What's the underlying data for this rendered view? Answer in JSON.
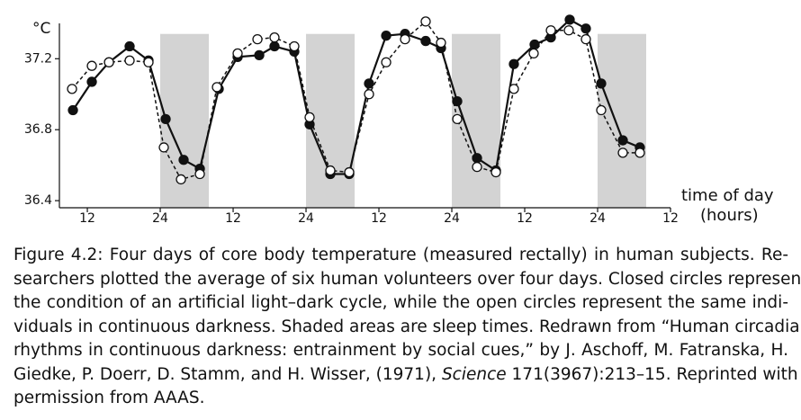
{
  "chart_data": {
    "type": "line",
    "ylabel": "°C",
    "xlabel": [
      "time of day",
      "(hours)"
    ],
    "xlim": [
      7.4,
      108
    ],
    "ylim": [
      36.36,
      37.45
    ],
    "xticks": [
      {
        "value": 12,
        "label": "12"
      },
      {
        "value": 24,
        "label": "24"
      },
      {
        "value": 36,
        "label": "12"
      },
      {
        "value": 48,
        "label": "24"
      },
      {
        "value": 60,
        "label": "12"
      },
      {
        "value": 72,
        "label": "24"
      },
      {
        "value": 84,
        "label": "12"
      },
      {
        "value": 96,
        "label": "24"
      },
      {
        "value": 108,
        "label": "12"
      }
    ],
    "yticks": [
      36.4,
      36.8,
      37.2
    ],
    "shaded": [
      [
        24,
        32
      ],
      [
        48,
        56
      ],
      [
        72,
        80
      ],
      [
        96,
        104
      ]
    ],
    "shade_top": 37.34,
    "shade_color": "#d3d3d3",
    "series": [
      {
        "color": "#111111",
        "marker": "filled",
        "dashed": false,
        "x": [
          9.63,
          12.74,
          15.56,
          18.96,
          22.07,
          24.89,
          27.85,
          30.52,
          33.63,
          36.74,
          40.3,
          42.81,
          46.07,
          48.59,
          52.0,
          55.11,
          58.37,
          61.19,
          64.3,
          67.7,
          70.22,
          72.89,
          76.15,
          79.26,
          82.22,
          85.63,
          88.3,
          91.41,
          94.07,
          96.59,
          100.15,
          102.96
        ],
        "values": [
          36.91,
          37.07,
          37.18,
          37.27,
          37.19,
          36.86,
          36.63,
          36.58,
          37.03,
          37.21,
          37.22,
          37.27,
          37.24,
          36.83,
          36.55,
          36.55,
          37.06,
          37.33,
          37.34,
          37.3,
          37.26,
          36.96,
          36.64,
          36.57,
          37.17,
          37.28,
          37.32,
          37.42,
          37.37,
          37.06,
          36.74,
          36.7
        ]
      },
      {
        "color": "#111111",
        "marker": "open",
        "dashed": true,
        "x": [
          9.48,
          12.74,
          15.56,
          18.96,
          22.07,
          24.59,
          27.41,
          30.52,
          33.33,
          36.74,
          40.0,
          42.81,
          46.07,
          48.59,
          52.0,
          55.11,
          58.37,
          61.19,
          64.3,
          67.7,
          70.22,
          72.89,
          76.15,
          79.26,
          82.22,
          85.48,
          88.3,
          91.26,
          94.07,
          96.59,
          100.15,
          102.96
        ],
        "values": [
          37.03,
          37.16,
          37.18,
          37.19,
          37.18,
          36.7,
          36.52,
          36.55,
          37.04,
          37.23,
          37.31,
          37.32,
          37.27,
          36.87,
          36.57,
          36.56,
          37.0,
          37.18,
          37.31,
          37.41,
          37.29,
          36.86,
          36.59,
          36.56,
          37.03,
          37.23,
          37.36,
          37.36,
          37.31,
          36.91,
          36.67,
          36.67
        ]
      }
    ]
  },
  "caption": {
    "lines": [
      "Figure 4.2: Four days of core body temperature (measured rectally) in human subjects. Re-",
      "searchers plotted the average of six human volunteers over four days. Closed circles represent",
      "the condition of an artificial light–dark cycle, while the open circles represent the same indi-",
      "viduals in continuous darkness. Shaded areas are sleep times. Redrawn from “Human circadian",
      "rhythms in continuous darkness: entrainment by social cues,” by J. Aschoff, M. Fatranska, H.",
      [
        "Giedke, P. Doerr, D. Stamm, and H. Wisser, (1971), ",
        "Science",
        " 171(3967):213–15. Reprinted with"
      ],
      "permission from AAAS."
    ]
  }
}
